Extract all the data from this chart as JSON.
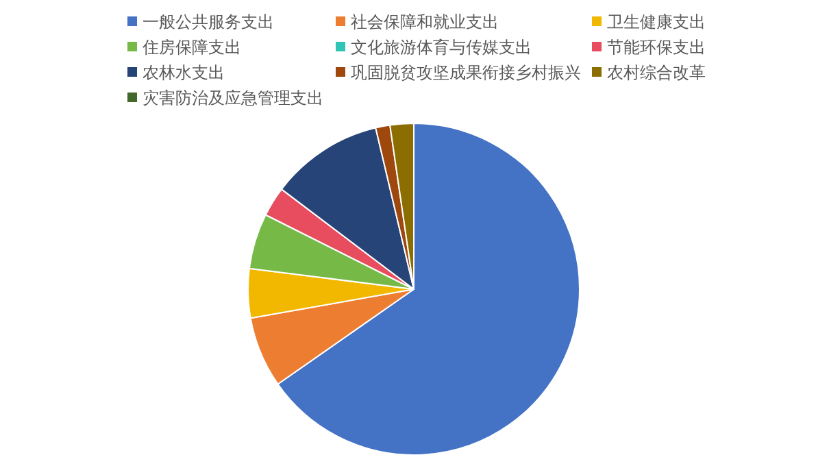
{
  "chart_data": {
    "type": "pie",
    "categories": [
      "一般公共服务支出",
      "社会保障和就业支出",
      "卫生健康支出",
      "住房保障支出",
      "文化旅游体育与传媒支出",
      "节能环保支出",
      "农林水支出",
      "巩固脱贫攻坚成果衔接乡村振兴",
      "农村综合改革",
      "灾害防治及应急管理支出"
    ],
    "values": [
      65.3,
      6.9,
      4.8,
      5.4,
      null,
      2.9,
      11.0,
      1.4,
      2.3,
      null
    ],
    "colors": [
      "#4472c4",
      "#ed7d31",
      "#f2b800",
      "#76b947",
      "#2ec4b6",
      "#e84c5f",
      "#264478",
      "#9e480e",
      "#8c6d00",
      "#43682b"
    ],
    "legend": "top"
  }
}
